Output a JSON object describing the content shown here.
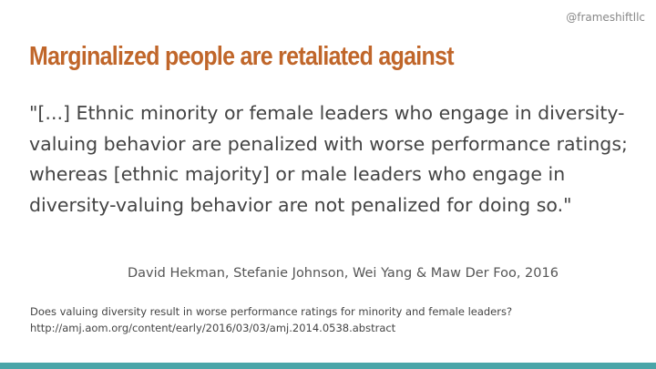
{
  "header": {
    "handle": "@frameshiftllc",
    "title": "Marginalized people are retaliated against"
  },
  "quote": "\"[...] Ethnic minority or female leaders who engage in diversity-valuing behavior are penalized with worse performance ratings; whereas [ethnic majority] or male leaders who engage in diversity-valuing behavior are not penalized for doing so.\"",
  "attribution": "David Hekman,  Stefanie Johnson, Wei Yang & Maw Der Foo, 2016",
  "source": {
    "title": "Does valuing diversity result in worse performance ratings for minority and female leaders?",
    "url": "http://amj.aom.org/content/early/2016/03/03/amj.2014.0538.abstract"
  }
}
